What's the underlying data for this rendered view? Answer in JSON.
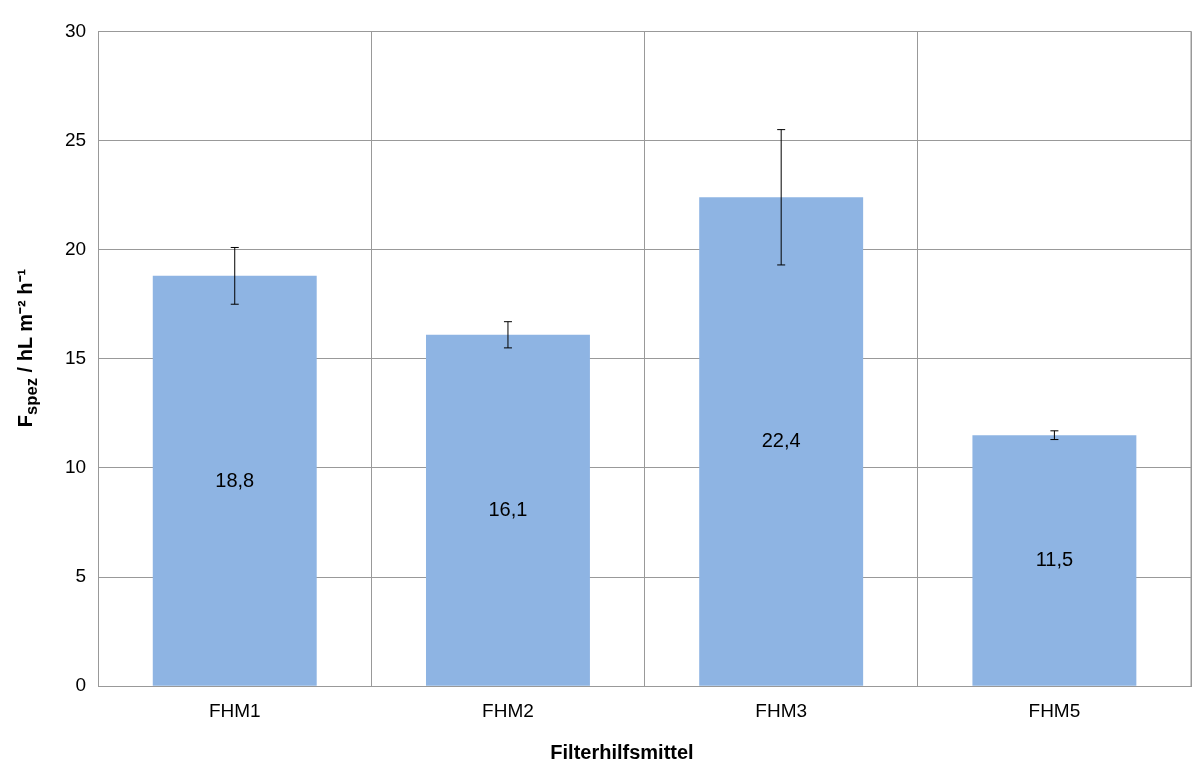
{
  "chart_data": {
    "type": "bar",
    "xlabel": "Filterhilfsmittel",
    "ylabel": "F$_{spez}$ / hL m⁻² h⁻¹",
    "categories": [
      "FHM1",
      "FHM2",
      "FHM3",
      "FHM5"
    ],
    "values": [
      18.8,
      16.1,
      22.4,
      11.5
    ],
    "value_labels": [
      "18,8",
      "16,1",
      "22,4",
      "11,5"
    ],
    "errors": [
      1.3,
      0.6,
      3.1,
      0.2
    ],
    "color": "#8eb4e3",
    "ylim": [
      0,
      30
    ],
    "yticks": [
      0,
      5,
      10,
      15,
      20,
      25,
      30
    ],
    "grid": true
  }
}
